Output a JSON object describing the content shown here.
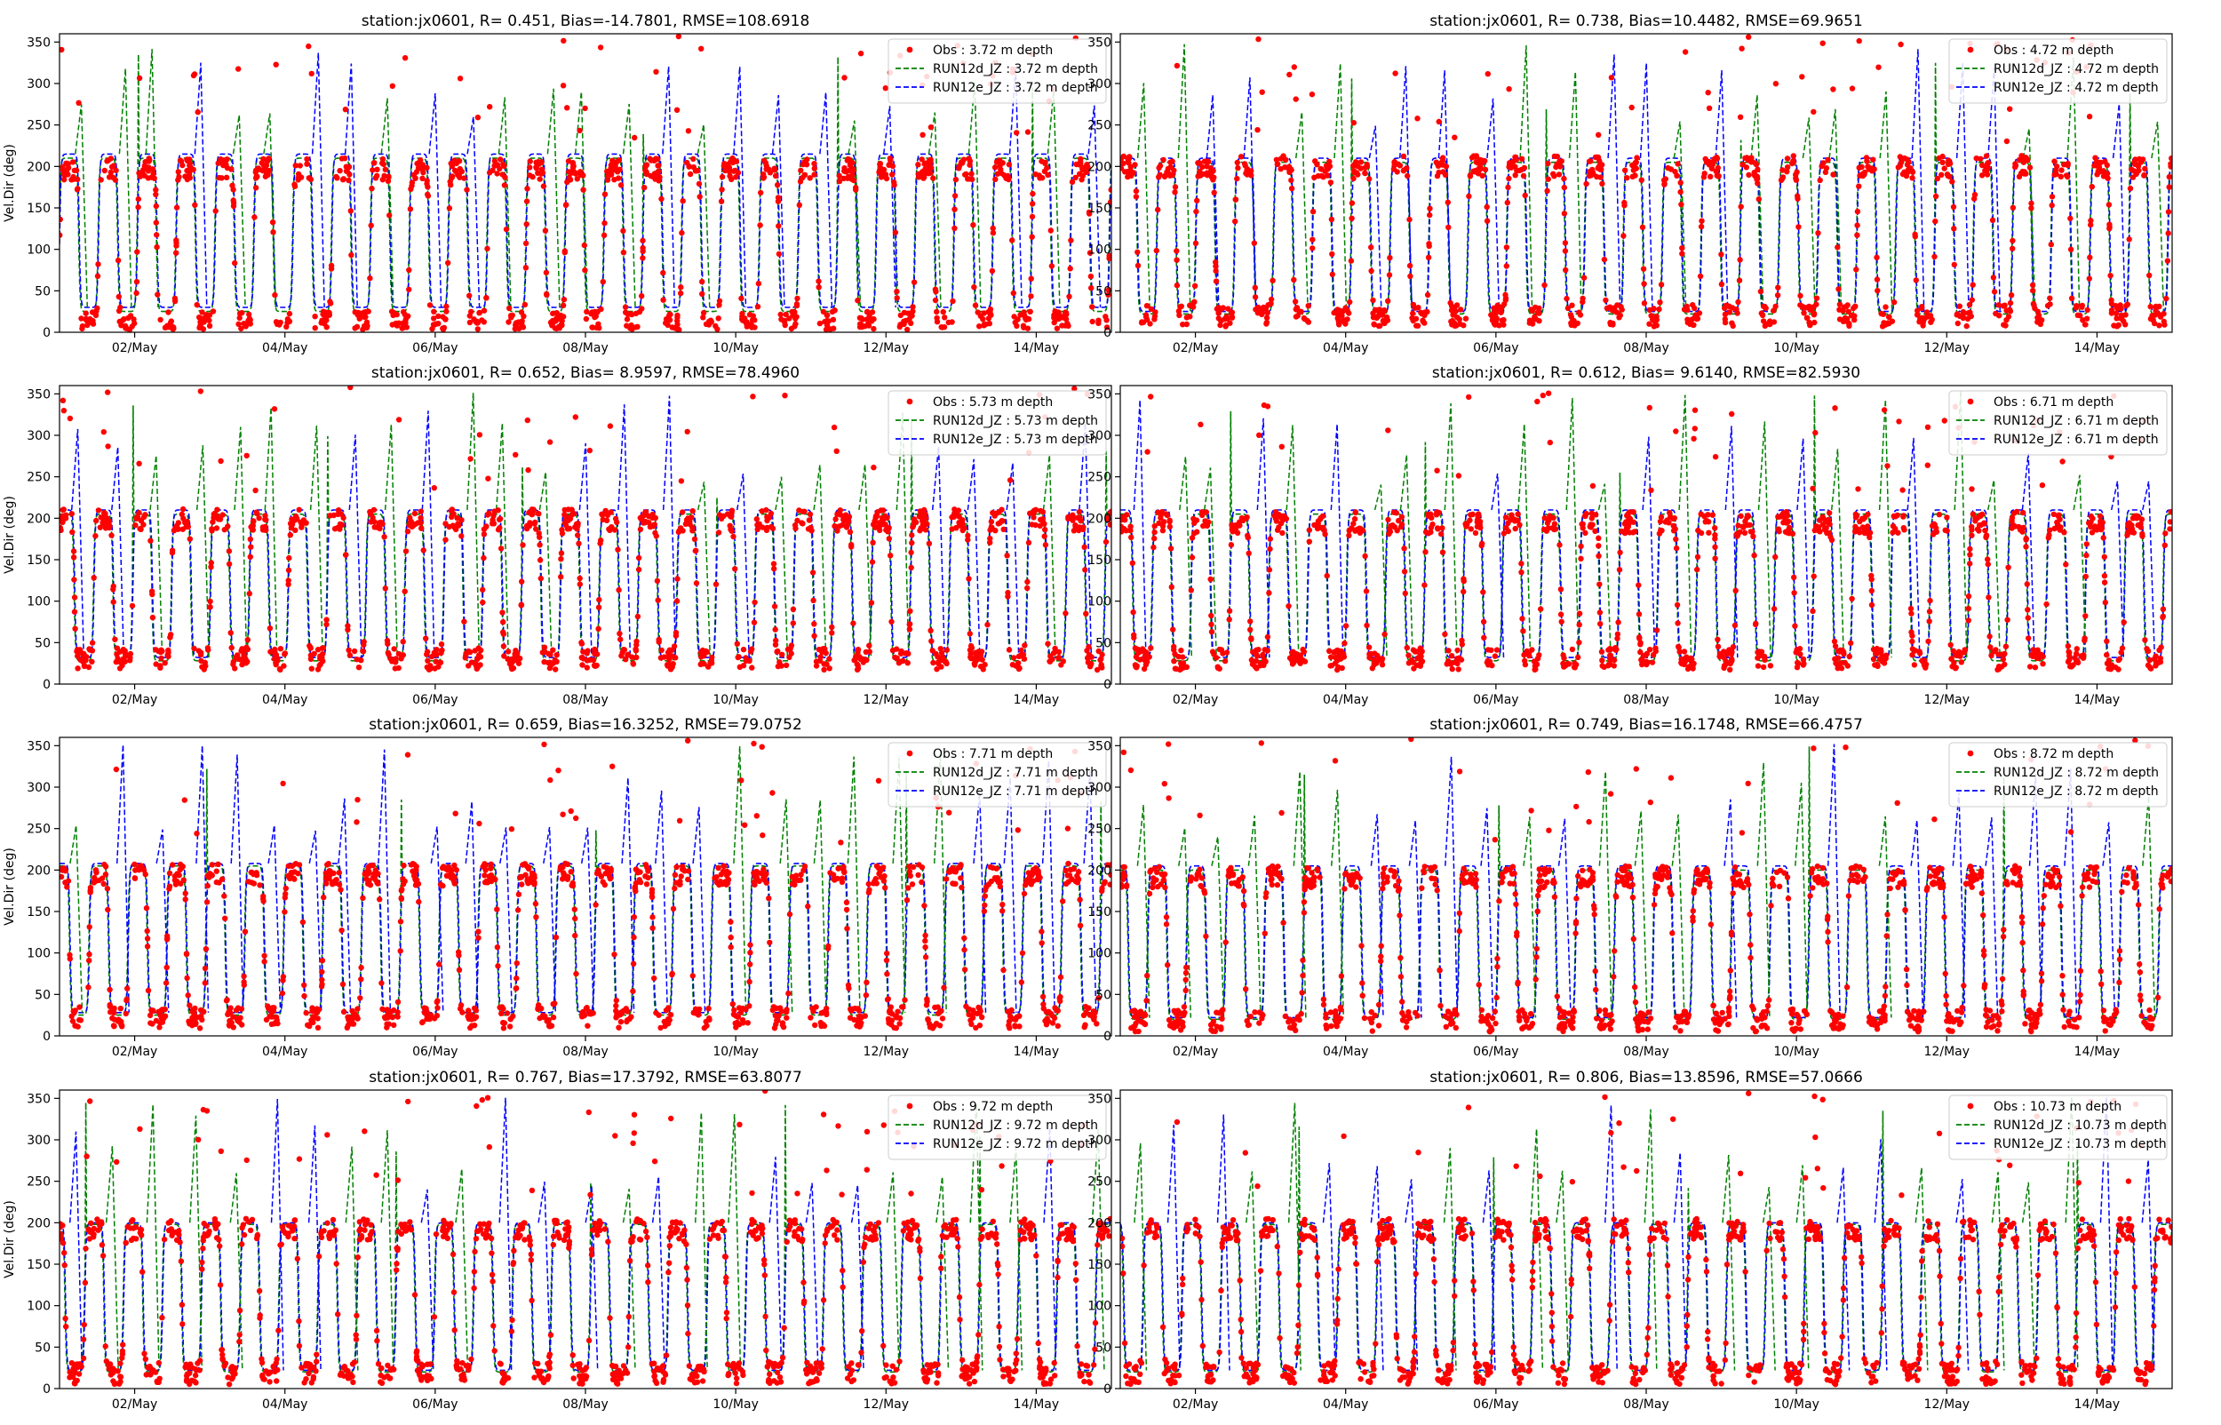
{
  "figure": {
    "ylabel": "Vel.Dir (deg)",
    "y_ticks": [
      0,
      50,
      100,
      150,
      200,
      250,
      300,
      350
    ],
    "x_ticks": [
      "02/May",
      "04/May",
      "06/May",
      "08/May",
      "10/May",
      "12/May",
      "14/May"
    ],
    "colors": {
      "obs": "#ff0000",
      "run12d": "#008000",
      "run12e": "#0000ff",
      "run12e_solid": "#1a3fcf"
    }
  },
  "chart_data": [
    {
      "type": "scatter",
      "title": "station:jx0601, R= 0.451, Bias=-14.7801, RMSE=108.6918",
      "xlabel": "",
      "ylabel": "Vel.Dir (deg)",
      "x_range": [
        "2019-05-01 00:00",
        "2019-05-15 00:00"
      ],
      "ylim": [
        0,
        360
      ],
      "legend_position": "top-right",
      "legend": [
        "Obs : 3.72 m depth",
        "RUN12d_JZ : 3.72 m depth",
        "RUN12e_JZ : 3.72 m depth"
      ],
      "series": [
        {
          "name": "Obs : 3.72 m depth",
          "kind": "scatter",
          "pattern": "semidiurnal",
          "high_deg": 197,
          "low_deg": 12
        },
        {
          "name": "RUN12d_JZ : 3.72 m depth",
          "kind": "dashed-line",
          "pattern": "semidiurnal",
          "high_deg": 210,
          "low_deg": 25
        },
        {
          "name": "RUN12e_JZ : 3.72 m depth",
          "kind": "dashed-line",
          "pattern": "semidiurnal",
          "high_deg": 215,
          "low_deg": 30
        }
      ]
    },
    {
      "type": "scatter",
      "title": "station:jx0601, R= 0.738, Bias=10.4482, RMSE=69.9651",
      "xlabel": "",
      "ylabel": "",
      "x_range": [
        "2019-05-01 00:00",
        "2019-05-15 00:00"
      ],
      "ylim": [
        0,
        360
      ],
      "legend_position": "top-right",
      "legend": [
        "Obs : 4.72 m depth",
        "RUN12d_JZ : 4.72 m depth",
        "RUN12e_JZ : 4.72 m depth"
      ],
      "series": [
        {
          "name": "Obs : 4.72 m depth",
          "kind": "scatter",
          "pattern": "semidiurnal",
          "high_deg": 200,
          "low_deg": 20
        },
        {
          "name": "RUN12d_JZ : 4.72 m depth",
          "kind": "dashed-line",
          "pattern": "semidiurnal",
          "high_deg": 205,
          "low_deg": 22
        },
        {
          "name": "RUN12e_JZ : 4.72 m depth",
          "kind": "dashed-line",
          "pattern": "semidiurnal",
          "high_deg": 210,
          "low_deg": 25
        }
      ]
    },
    {
      "type": "scatter",
      "title": "station:jx0601, R= 0.652, Bias= 8.9597, RMSE=78.4960",
      "xlabel": "",
      "ylabel": "Vel.Dir (deg)",
      "x_range": [
        "2019-05-01 00:00",
        "2019-05-15 00:00"
      ],
      "ylim": [
        0,
        360
      ],
      "legend_position": "top-right",
      "legend": [
        "Obs : 5.73 m depth",
        "RUN12d_JZ : 5.73 m depth",
        "RUN12e_JZ : 5.73 m depth"
      ],
      "series": [
        {
          "name": "Obs : 5.73 m depth",
          "kind": "scatter",
          "pattern": "semidiurnal",
          "high_deg": 198,
          "low_deg": 30
        },
        {
          "name": "RUN12d_JZ : 5.73 m depth",
          "kind": "dashed-line",
          "pattern": "semidiurnal",
          "high_deg": 205,
          "low_deg": 28
        },
        {
          "name": "RUN12e_JZ : 5.73 m depth",
          "kind": "dashed-line",
          "pattern": "semidiurnal",
          "high_deg": 210,
          "low_deg": 32
        }
      ]
    },
    {
      "type": "scatter",
      "title": "station:jx0601, R= 0.612, Bias= 9.6140, RMSE=82.5930",
      "xlabel": "",
      "ylabel": "",
      "x_range": [
        "2019-05-01 00:00",
        "2019-05-15 00:00"
      ],
      "ylim": [
        0,
        360
      ],
      "legend_position": "top-right",
      "legend": [
        "Obs : 6.71 m depth",
        "RUN12d_JZ : 6.71 m depth",
        "RUN12e_JZ : 6.71 m depth"
      ],
      "series": [
        {
          "name": "Obs : 6.71 m depth",
          "kind": "scatter",
          "pattern": "semidiurnal",
          "high_deg": 195,
          "low_deg": 30
        },
        {
          "name": "RUN12d_JZ : 6.71 m depth",
          "kind": "dashed-line",
          "pattern": "semidiurnal",
          "high_deg": 205,
          "low_deg": 28
        },
        {
          "name": "RUN12e_JZ : 6.71 m depth",
          "kind": "dashed-line",
          "pattern": "semidiurnal",
          "high_deg": 210,
          "low_deg": 32
        }
      ]
    },
    {
      "type": "scatter",
      "title": "station:jx0601, R= 0.659, Bias=16.3252, RMSE=79.0752",
      "xlabel": "",
      "ylabel": "Vel.Dir (deg)",
      "x_range": [
        "2019-05-01 00:00",
        "2019-05-15 00:00"
      ],
      "ylim": [
        0,
        360
      ],
      "legend_position": "top-right",
      "legend": [
        "Obs : 7.71 m depth",
        "RUN12d_JZ : 7.71 m depth",
        "RUN12e_JZ : 7.71 m depth"
      ],
      "series": [
        {
          "name": "Obs : 7.71 m depth",
          "kind": "scatter",
          "pattern": "semidiurnal",
          "high_deg": 195,
          "low_deg": 22
        },
        {
          "name": "RUN12d_JZ : 7.71 m depth",
          "kind": "dashed-line",
          "pattern": "semidiurnal",
          "high_deg": 205,
          "low_deg": 25
        },
        {
          "name": "RUN12e_JZ : 7.71 m depth",
          "kind": "dashed-line",
          "pattern": "semidiurnal",
          "high_deg": 208,
          "low_deg": 28
        }
      ]
    },
    {
      "type": "scatter",
      "title": "station:jx0601, R= 0.749, Bias=16.1748, RMSE=66.4757",
      "xlabel": "",
      "ylabel": "",
      "x_range": [
        "2019-05-01 00:00",
        "2019-05-15 00:00"
      ],
      "ylim": [
        0,
        360
      ],
      "legend_position": "top-right",
      "legend": [
        "Obs : 8.72 m depth",
        "RUN12d_JZ : 8.72 m depth",
        "RUN12e_JZ : 8.72 m depth"
      ],
      "series": [
        {
          "name": "Obs : 8.72 m depth",
          "kind": "scatter",
          "pattern": "semidiurnal",
          "high_deg": 192,
          "low_deg": 18
        },
        {
          "name": "RUN12d_JZ : 8.72 m depth",
          "kind": "dashed-line",
          "pattern": "semidiurnal",
          "high_deg": 200,
          "low_deg": 20
        },
        {
          "name": "RUN12e_JZ : 8.72 m depth",
          "kind": "dashed-line",
          "pattern": "semidiurnal",
          "high_deg": 205,
          "low_deg": 22
        }
      ]
    },
    {
      "type": "scatter",
      "title": "station:jx0601, R= 0.767, Bias=17.3792, RMSE=63.8077",
      "xlabel": "",
      "ylabel": "Vel.Dir (deg)",
      "x_range": [
        "2019-05-01 00:00",
        "2019-05-15 00:00"
      ],
      "ylim": [
        0,
        360
      ],
      "legend_position": "top-right",
      "legend": [
        "Obs : 9.72 m depth",
        "RUN12d_JZ : 9.72 m depth",
        "RUN12e_JZ : 9.72 m depth"
      ],
      "series": [
        {
          "name": "Obs : 9.72 m depth",
          "kind": "scatter",
          "pattern": "semidiurnal",
          "high_deg": 192,
          "low_deg": 18
        },
        {
          "name": "RUN12d_JZ : 9.72 m depth",
          "kind": "dashed-line",
          "pattern": "semidiurnal",
          "high_deg": 198,
          "low_deg": 20
        },
        {
          "name": "RUN12e_JZ : 9.72 m depth",
          "kind": "dashed-line",
          "pattern": "semidiurnal",
          "high_deg": 200,
          "low_deg": 22
        }
      ]
    },
    {
      "type": "scatter",
      "title": "station:jx0601, R= 0.806, Bias=13.8596, RMSE=57.0666",
      "xlabel": "",
      "ylabel": "",
      "x_range": [
        "2019-05-01 00:00",
        "2019-05-15 00:00"
      ],
      "ylim": [
        0,
        360
      ],
      "legend_position": "top-right",
      "legend": [
        "Obs : 10.73 m depth",
        "RUN12d_JZ : 10.73 m depth",
        "RUN12e_JZ : 10.73 m depth"
      ],
      "series": [
        {
          "name": "Obs : 10.73 m depth",
          "kind": "scatter",
          "pattern": "semidiurnal",
          "high_deg": 192,
          "low_deg": 18
        },
        {
          "name": "RUN12d_JZ : 10.73 m depth",
          "kind": "dashed-line",
          "pattern": "semidiurnal",
          "high_deg": 198,
          "low_deg": 20
        },
        {
          "name": "RUN12e_JZ : 10.73 m depth",
          "kind": "dashed-line",
          "pattern": "semidiurnal",
          "high_deg": 200,
          "low_deg": 22
        }
      ]
    }
  ]
}
